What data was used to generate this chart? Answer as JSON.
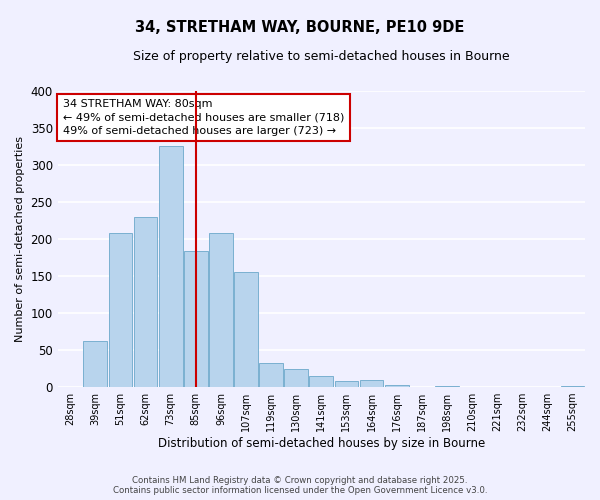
{
  "title": "34, STRETHAM WAY, BOURNE, PE10 9DE",
  "subtitle": "Size of property relative to semi-detached houses in Bourne",
  "xlabel": "Distribution of semi-detached houses by size in Bourne",
  "ylabel": "Number of semi-detached properties",
  "categories": [
    "28sqm",
    "39sqm",
    "51sqm",
    "62sqm",
    "73sqm",
    "85sqm",
    "96sqm",
    "107sqm",
    "119sqm",
    "130sqm",
    "141sqm",
    "153sqm",
    "164sqm",
    "176sqm",
    "187sqm",
    "198sqm",
    "210sqm",
    "221sqm",
    "232sqm",
    "244sqm",
    "255sqm"
  ],
  "values": [
    0,
    62,
    208,
    230,
    325,
    184,
    208,
    155,
    32,
    25,
    15,
    8,
    9,
    3,
    0,
    2,
    0,
    0,
    0,
    0,
    2
  ],
  "bar_color": "#b8d4ed",
  "bar_edge_color": "#7aaard4",
  "ylim": [
    0,
    400
  ],
  "yticks": [
    0,
    50,
    100,
    150,
    200,
    250,
    300,
    350,
    400
  ],
  "property_label": "34 STRETHAM WAY: 80sqm",
  "pct_smaller": 49,
  "count_smaller": 718,
  "pct_larger": 49,
  "count_larger": 723,
  "vline_x_index": 5,
  "vline_color": "#cc0000",
  "annotation_box_edge": "#cc0000",
  "background_color": "#f0f0ff",
  "grid_color": "#d8d8ee",
  "footer_line1": "Contains HM Land Registry data © Crown copyright and database right 2025.",
  "footer_line2": "Contains public sector information licensed under the Open Government Licence v3.0."
}
